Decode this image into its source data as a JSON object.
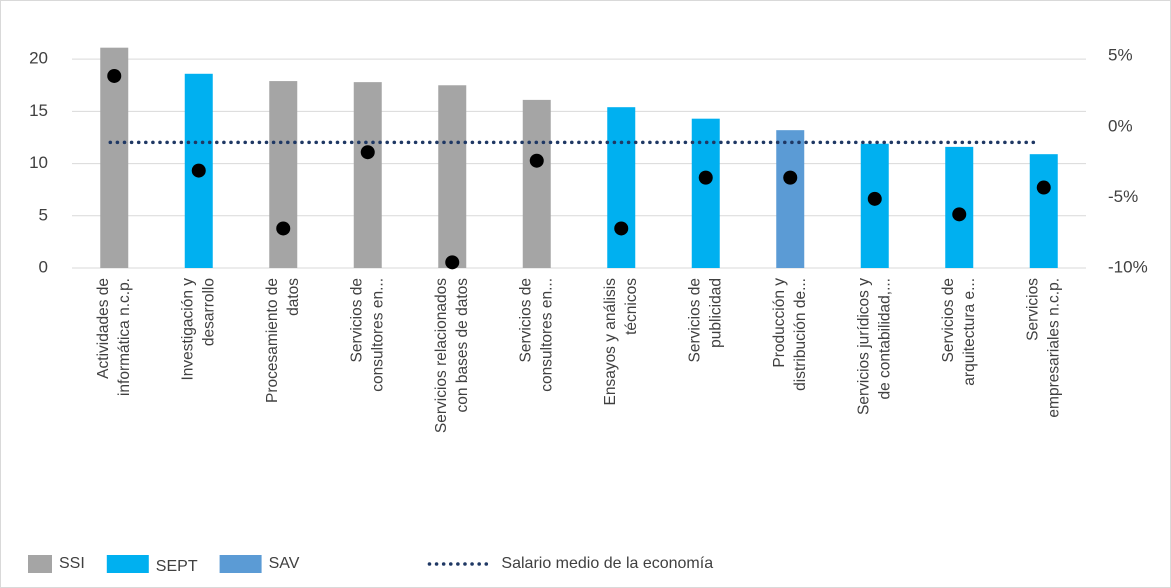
{
  "chart_data": {
    "type": "bar",
    "categories": [
      [
        "Actividades de",
        "informática n.c.p."
      ],
      [
        "Investigación y",
        "desarrollo"
      ],
      [
        "Procesamiento de",
        "datos"
      ],
      [
        "Servicios de",
        "consultores en..."
      ],
      [
        "Servicios relacionados",
        "con bases de datos"
      ],
      [
        "Servicios de",
        "consultores en..."
      ],
      [
        "Ensayos y análisis",
        "técnicos"
      ],
      [
        "Servicios de",
        "publicidad"
      ],
      [
        "Producción y",
        "distribución de..."
      ],
      [
        "Servicios jurídicos y",
        "de contabilidad,..."
      ],
      [
        "Servicios de",
        "arquitectura e..."
      ],
      [
        "Servicios",
        "empresariales n.c.p."
      ]
    ],
    "series": [
      {
        "name": "SSI",
        "color": "#a5a5a5",
        "values": [
          21.1,
          null,
          17.9,
          17.8,
          17.5,
          16.1,
          null,
          null,
          null,
          null,
          null,
          null
        ]
      },
      {
        "name": "SEPT",
        "color": "#00b0f0",
        "values": [
          null,
          18.6,
          null,
          null,
          null,
          null,
          15.4,
          14.3,
          null,
          11.9,
          11.6,
          10.9
        ]
      },
      {
        "name": "SAV",
        "color": "#5b9bd5",
        "values": [
          null,
          null,
          null,
          null,
          null,
          null,
          null,
          null,
          13.2,
          null,
          null,
          null
        ]
      },
      {
        "type": "scatter",
        "axis": "y2",
        "color": "#000000",
        "values": [
          3.6,
          -3.1,
          -7.2,
          -1.8,
          -9.6,
          -2.4,
          -7.2,
          -3.6,
          -3.6,
          -5.1,
          -6.2,
          -4.3
        ]
      }
    ],
    "reference_lines": [
      {
        "name": "Salario medio de la economía",
        "axis": "y2",
        "value": -1.1,
        "color": "#1f3864",
        "style": "dotted"
      }
    ],
    "ylim": [
      0,
      21.5
    ],
    "yticks": [
      0,
      5,
      10,
      15,
      20
    ],
    "y2lim": [
      -10,
      5.9
    ],
    "y2ticks": [
      {
        "value": -10,
        "label": "-10%"
      },
      {
        "value": -5,
        "label": "-5%"
      },
      {
        "value": 0,
        "label": "0%"
      },
      {
        "value": 5,
        "label": "5%"
      }
    ],
    "grid": true,
    "legend": "bottom"
  }
}
